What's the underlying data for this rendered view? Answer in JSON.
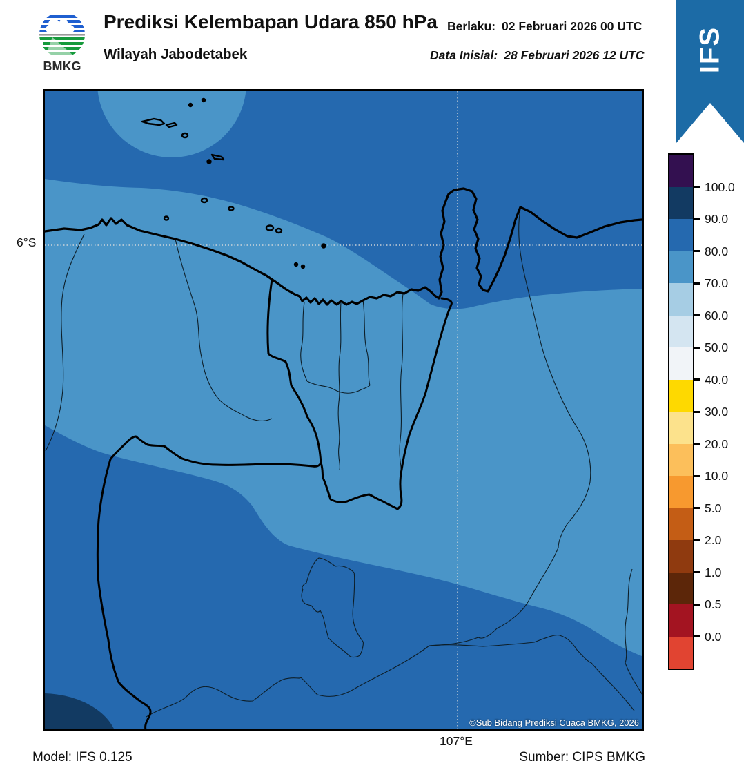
{
  "header": {
    "logo_text": "BMKG",
    "title": "Prediksi Kelembapan Udara 850 hPa",
    "subtitle": "Wilayah Jabodetabek",
    "valid_label": "Berlaku:",
    "valid_value": "02 Februari 2026 00 UTC",
    "init_label": "Data Inisial:",
    "init_value": "28 Februari 2026 12 UTC"
  },
  "ribbon": {
    "label": "IFS",
    "color": "#1c6ba6"
  },
  "map": {
    "lat_label": "6°S",
    "lon_label": "107°E",
    "copyright": "©Sub Bidang Prediksi Cuaca BMKG, 2026",
    "colors": {
      "band_70_80": "#4a95c8",
      "band_80_90": "#2569af",
      "band_90_100": "#123a62",
      "coastline": "#000000",
      "gridline": "#dcdcdc"
    }
  },
  "colorbar": {
    "tick_labels": [
      "100.0",
      "90.0",
      "80.0",
      "70.0",
      "60.0",
      "50.0",
      "40.0",
      "30.0",
      "20.0",
      "10.0",
      "5.0",
      "2.0",
      "1.0",
      "0.5",
      "0.0"
    ],
    "segment_colors": [
      "#331050",
      "#123a62",
      "#2569af",
      "#4a95c8",
      "#a6cde4",
      "#d4e5f1",
      "#f1f4f8",
      "#fed900",
      "#fce28c",
      "#fcbf5b",
      "#f7992f",
      "#c45d15",
      "#8f3a0f",
      "#5c2609",
      "#a31421",
      "#e14431"
    ]
  },
  "footer": {
    "model": "Model: IFS 0.125",
    "source": "Sumber: CIPS BMKG"
  }
}
